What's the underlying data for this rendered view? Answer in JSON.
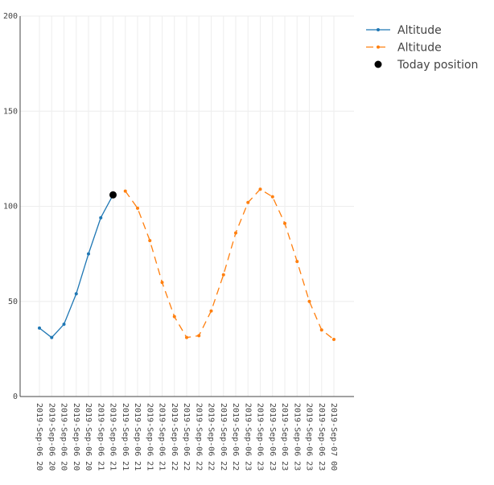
{
  "chart_data": {
    "type": "line",
    "categories": [
      "2019-Sep-06 20",
      "2019-Sep-06 20",
      "2019-Sep-06 20",
      "2019-Sep-06 20",
      "2019-Sep-06 20",
      "2019-Sep-06 21",
      "2019-Sep-06 21",
      "2019-Sep-06 21",
      "2019-Sep-06 21",
      "2019-Sep-06 21",
      "2019-Sep-06 21",
      "2019-Sep-06 22",
      "2019-Sep-06 22",
      "2019-Sep-06 22",
      "2019-Sep-06 22",
      "2019-Sep-06 22",
      "2019-Sep-06 22",
      "2019-Sep-06 23",
      "2019-Sep-06 23",
      "2019-Sep-06 23",
      "2019-Sep-06 23",
      "2019-Sep-06 23",
      "2019-Sep-06 23",
      "2019-Sep-06 23",
      "2019-Sep-07 00"
    ],
    "series": [
      {
        "name": "Altitude",
        "color": "#1f77b4",
        "dash": false,
        "values": [
          36,
          31,
          38,
          54,
          75,
          94,
          106,
          null,
          null,
          null,
          null,
          null,
          null,
          null,
          null,
          null,
          null,
          null,
          null,
          null,
          null,
          null,
          null,
          null,
          null
        ]
      },
      {
        "name": "Altitude",
        "color": "#ff7f0e",
        "dash": true,
        "values": [
          null,
          null,
          null,
          null,
          null,
          null,
          null,
          108,
          99,
          82,
          60,
          42,
          31,
          32,
          45,
          64,
          86,
          102,
          109,
          105,
          91,
          71,
          50,
          35,
          30
        ]
      },
      {
        "name": "Today position",
        "color": "#000000",
        "marker_only": true,
        "values": [
          null,
          null,
          null,
          null,
          null,
          null,
          106,
          null,
          null,
          null,
          null,
          null,
          null,
          null,
          null,
          null,
          null,
          null,
          null,
          null,
          null,
          null,
          null,
          null,
          null
        ]
      }
    ],
    "ylim": [
      0,
      200
    ],
    "yticks": [
      0,
      50,
      100,
      150,
      200
    ],
    "grid": true
  }
}
